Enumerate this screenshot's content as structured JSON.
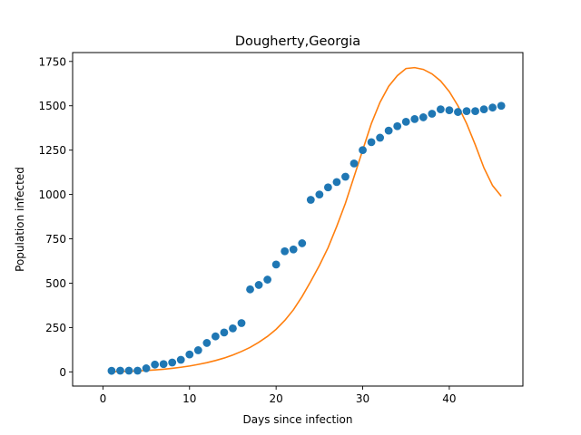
{
  "chart_data": {
    "type": "scatter",
    "title": "Dougherty,Georgia",
    "xlabel": "Days since infection",
    "ylabel": "Population infected",
    "xlim": [
      -3.5,
      48.5
    ],
    "ylim": [
      -80,
      1800
    ],
    "x_ticks": [
      0,
      10,
      20,
      30,
      40
    ],
    "y_ticks": [
      0,
      250,
      500,
      750,
      1000,
      1250,
      1500,
      1750
    ],
    "grid": false,
    "colors": {
      "points": "#1f77b4",
      "fit": "#ff7f0e"
    },
    "series": [
      {
        "kind": "points",
        "x": [
          1,
          2,
          3,
          4,
          5,
          6,
          7,
          8,
          9,
          10,
          11,
          12,
          13,
          14,
          15,
          16,
          17,
          18,
          19,
          20,
          21,
          22,
          23,
          24,
          25,
          26,
          27,
          28,
          29,
          30,
          31,
          32,
          33,
          34,
          35,
          36,
          37,
          38,
          39,
          40,
          41,
          42,
          43,
          44,
          45,
          46
        ],
        "y": [
          6,
          7,
          7,
          7,
          20,
          41,
          44,
          53,
          68,
          98,
          122,
          163,
          200,
          222,
          245,
          275,
          465,
          490,
          520,
          605,
          680,
          690,
          725,
          970,
          1000,
          1040,
          1070,
          1100,
          1175,
          1250,
          1295,
          1320,
          1360,
          1385,
          1410,
          1425,
          1435,
          1455,
          1480,
          1475,
          1465,
          1470,
          1470,
          1480,
          1490,
          1500
        ]
      },
      {
        "kind": "line",
        "x": [
          1,
          2,
          3,
          4,
          5,
          6,
          7,
          8,
          9,
          10,
          11,
          12,
          13,
          14,
          15,
          16,
          17,
          18,
          19,
          20,
          21,
          22,
          23,
          24,
          25,
          26,
          27,
          28,
          29,
          30,
          31,
          32,
          33,
          34,
          35,
          36,
          37,
          38,
          39,
          40,
          41,
          42,
          43,
          44,
          45,
          46
        ],
        "y": [
          1,
          2,
          3,
          5,
          8,
          11,
          15,
          20,
          26,
          33,
          42,
          52,
          64,
          78,
          95,
          115,
          138,
          167,
          200,
          240,
          290,
          350,
          425,
          510,
          600,
          700,
          820,
          950,
          1100,
          1250,
          1400,
          1520,
          1610,
          1670,
          1710,
          1715,
          1705,
          1680,
          1640,
          1580,
          1500,
          1400,
          1280,
          1150,
          1050,
          990
        ]
      }
    ]
  }
}
